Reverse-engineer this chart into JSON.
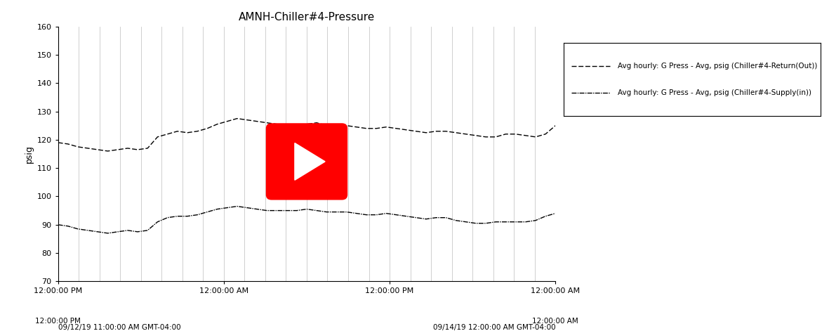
{
  "title": "AMNH-Chiller#4-Pressure",
  "ylabel": "psig",
  "ylim": [
    70,
    160
  ],
  "yticks": [
    70,
    80,
    90,
    100,
    110,
    120,
    130,
    140,
    150,
    160
  ],
  "xtick_labels": [
    "12:00:00 PM",
    "12:00:00 AM",
    "12:00:00 PM",
    "12:00:00 AM"
  ],
  "date_label_left": "09/12/19 11:00:00 AM GMT-04:00",
  "date_label_right": "09/14/19 12:00:00 AM GMT-04:00",
  "legend_label_return": "Avg hourly: G Press - Avg, psig (Chiller#4-Return(Out))",
  "legend_label_supply": "Avg hourly: G Press - Avg, psig (Chiller#4-Supply(in))",
  "background_color": "#ffffff",
  "line_color": "#000000",
  "grid_color": "#c8c8c8",
  "return_data": [
    119,
    118.5,
    117.5,
    117,
    116.5,
    116,
    116.5,
    117,
    116.5,
    117,
    121,
    122,
    123,
    122.5,
    123,
    124,
    125.5,
    126.5,
    127.5,
    127,
    126.5,
    126,
    125.5,
    125,
    125,
    125.5,
    126,
    125,
    125,
    125,
    124.5,
    124,
    124,
    124.5,
    124,
    123.5,
    123,
    122.5,
    123,
    123,
    122.5,
    122,
    121.5,
    121,
    121,
    122,
    122,
    121.5,
    121,
    122,
    125
  ],
  "supply_data": [
    90,
    89.5,
    88.5,
    88,
    87.5,
    87,
    87.5,
    88,
    87.5,
    88,
    91,
    92.5,
    93,
    93,
    93.5,
    94.5,
    95.5,
    96,
    96.5,
    96,
    95.5,
    95,
    95,
    95,
    95,
    95.5,
    95,
    94.5,
    94.5,
    94.5,
    94,
    93.5,
    93.5,
    94,
    93.5,
    93,
    92.5,
    92,
    92.5,
    92.5,
    91.5,
    91,
    90.5,
    90.5,
    91,
    91,
    91,
    91,
    91.5,
    93,
    94
  ],
  "num_points": 51,
  "num_vgrid_lines": 25,
  "yt_color": "#FF0000",
  "yt_edge_color": "#CC0000",
  "figsize": [
    11.81,
    4.71
  ],
  "dpi": 100
}
